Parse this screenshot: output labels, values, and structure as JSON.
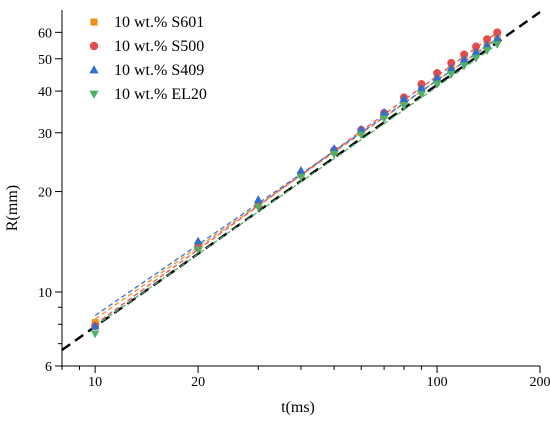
{
  "chart_data": {
    "type": "scatter",
    "xscale": "log",
    "yscale": "log",
    "xlim": [
      8,
      200
    ],
    "ylim": [
      6,
      70
    ],
    "xlabel": "t(ms)",
    "ylabel": "R(mm)",
    "xticks": [
      10,
      20,
      100,
      200
    ],
    "yticks": [
      6,
      10,
      20,
      30,
      40,
      50,
      60
    ],
    "legend_position": "top-left",
    "series": [
      {
        "name": "10 wt.% S601",
        "color": "#F28E1C",
        "marker": "square",
        "x": [
          10,
          20,
          30,
          40,
          50,
          60,
          70,
          80,
          90,
          100,
          110,
          120,
          130,
          140,
          150
        ],
        "y": [
          8.1,
          13.7,
          18.3,
          22.5,
          26.3,
          30.2,
          33.8,
          37.2,
          40.4,
          43.7,
          46.6,
          49.6,
          52.4,
          55.2,
          57.6
        ],
        "fit": {
          "x0": 10,
          "y0": 8.3,
          "x1": 150,
          "y1": 57.5
        }
      },
      {
        "name": "10 wt.% S500",
        "color": "#E74C4C",
        "marker": "circle",
        "x": [
          10,
          20,
          30,
          40,
          50,
          60,
          70,
          80,
          90,
          100,
          110,
          120,
          130,
          140,
          150
        ],
        "y": [
          7.9,
          13.6,
          18.2,
          22.6,
          26.6,
          30.6,
          34.4,
          38.3,
          42.0,
          45.3,
          48.6,
          51.5,
          54.4,
          57.2,
          60.0
        ],
        "fit": {
          "x0": 10,
          "y0": 8.0,
          "x1": 150,
          "y1": 60.0
        }
      },
      {
        "name": "10 wt.% S409",
        "color": "#2E6FD0",
        "marker": "triangle-up",
        "x": [
          10,
          20,
          30,
          40,
          50,
          60,
          70,
          80,
          90,
          100,
          110,
          120,
          130,
          140,
          150
        ],
        "y": [
          7.9,
          14.2,
          18.9,
          23.1,
          26.9,
          30.7,
          34.5,
          37.9,
          40.9,
          43.9,
          46.8,
          49.8,
          52.4,
          55.0,
          57.5
        ],
        "fit": {
          "x0": 10,
          "y0": 8.5,
          "x1": 150,
          "y1": 57.3
        }
      },
      {
        "name": "10 wt.% EL20",
        "color": "#4FB06A",
        "marker": "triangle-down",
        "x": [
          10,
          20,
          30,
          40,
          50,
          60,
          70,
          80,
          90,
          100,
          110,
          120,
          130,
          140,
          150
        ],
        "y": [
          7.5,
          13.4,
          18.0,
          22.1,
          25.9,
          29.6,
          33.1,
          36.2,
          39.2,
          42.0,
          45.0,
          47.7,
          50.3,
          53.0,
          55.3
        ],
        "fit": {
          "x0": 10,
          "y0": 7.9,
          "x1": 150,
          "y1": 55.2
        }
      }
    ],
    "reference_line": {
      "style": "dashed",
      "color": "#000000",
      "x0": 8,
      "y0": 6.7,
      "x1": 200,
      "y1": 69
    }
  }
}
